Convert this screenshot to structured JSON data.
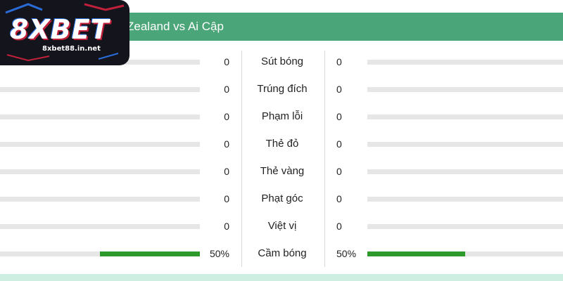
{
  "header": {
    "title": "Zealand vs Ai Cập",
    "color": "#4aa578"
  },
  "logo": {
    "brand": "8XBET",
    "site": "8xbet88.in.net"
  },
  "stats": [
    {
      "label": "Sút bóng",
      "home": "0",
      "away": "0",
      "home_share": 0,
      "away_share": 0
    },
    {
      "label": "Trúng đích",
      "home": "0",
      "away": "0",
      "home_share": 0,
      "away_share": 0
    },
    {
      "label": "Phạm lỗi",
      "home": "0",
      "away": "0",
      "home_share": 0,
      "away_share": 0
    },
    {
      "label": "Thẻ đỏ",
      "home": "0",
      "away": "0",
      "home_share": 0,
      "away_share": 0
    },
    {
      "label": "Thẻ vàng",
      "home": "0",
      "away": "0",
      "home_share": 0,
      "away_share": 0
    },
    {
      "label": "Phạt góc",
      "home": "0",
      "away": "0",
      "home_share": 0,
      "away_share": 0
    },
    {
      "label": "Việt vị",
      "home": "0",
      "away": "0",
      "home_share": 0,
      "away_share": 0
    },
    {
      "label": "Cầm bóng",
      "home": "50%",
      "away": "50%",
      "home_share": 0.5,
      "away_share": 0.5
    }
  ],
  "colors": {
    "bar_fill": "#2f9a2c",
    "bar_track": "#e6e6e6"
  }
}
